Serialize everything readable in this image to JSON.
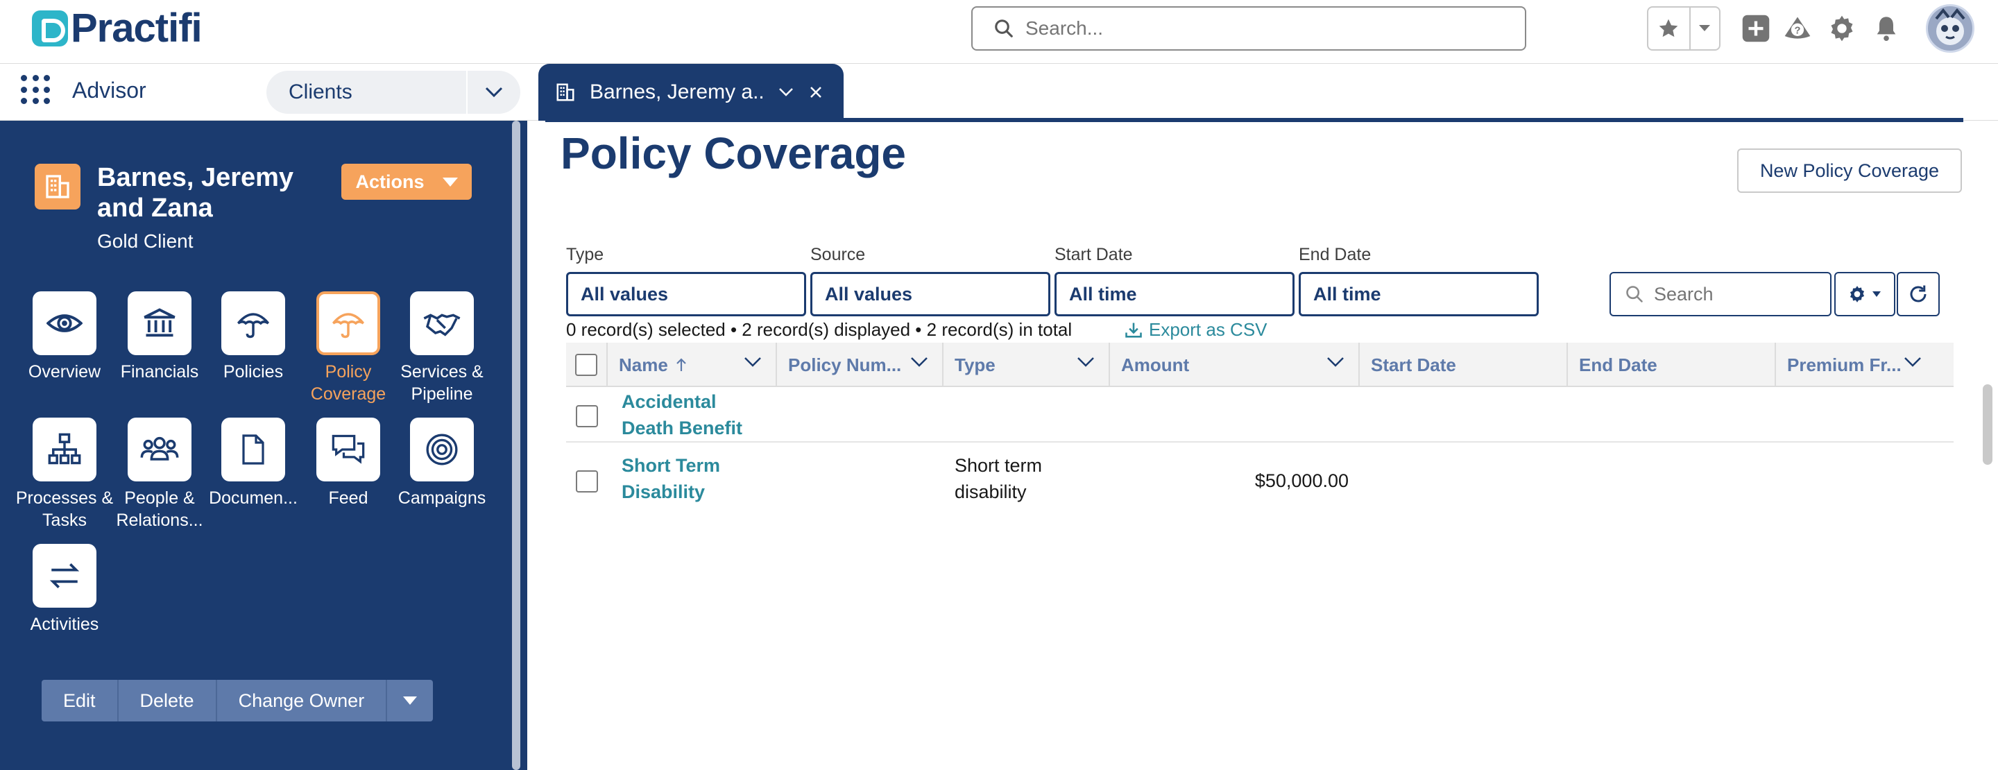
{
  "header": {
    "logo_text": "Practifi",
    "search_placeholder": "Search...",
    "icons": [
      "star-icon",
      "chevron-down-icon",
      "add-icon",
      "help-icon",
      "gear-icon",
      "bell-icon",
      "avatar"
    ]
  },
  "nav": {
    "app_name": "Advisor",
    "object_selector": "Clients",
    "record_tab_title": "Barnes, Jeremy a..."
  },
  "sidebar": {
    "account_name": "Barnes, Jeremy and Zana",
    "account_subtitle": "Gold Client",
    "actions_label": "Actions",
    "tiles": [
      {
        "label": "Overview",
        "icon": "eye-icon"
      },
      {
        "label": "Financials",
        "icon": "bank-icon"
      },
      {
        "label": "Policies",
        "icon": "umbrella-icon"
      },
      {
        "label": "Policy Coverage",
        "icon": "umbrella-icon",
        "active": true
      },
      {
        "label": "Services & Pipeline",
        "icon": "handshake-icon"
      },
      {
        "label": "Processes & Tasks",
        "icon": "org-chart-icon"
      },
      {
        "label": "People & Relations...",
        "icon": "people-icon"
      },
      {
        "label": "Documen...",
        "icon": "document-icon"
      },
      {
        "label": "Feed",
        "icon": "chat-icon"
      },
      {
        "label": "Campaigns",
        "icon": "target-icon"
      },
      {
        "label": "Activities",
        "icon": "swap-icon"
      }
    ],
    "buttons": {
      "edit": "Edit",
      "delete": "Delete",
      "change_owner": "Change Owner"
    }
  },
  "main": {
    "title": "Policy Coverage",
    "new_button": "New Policy Coverage",
    "filters": [
      {
        "label": "Type",
        "value": "All values"
      },
      {
        "label": "Source",
        "value": "All values"
      },
      {
        "label": "Start Date",
        "value": "All time"
      },
      {
        "label": "End Date",
        "value": "All time"
      }
    ],
    "table_search_placeholder": "Search",
    "record_info": "0 record(s) selected • 2 record(s) displayed • 2 record(s) in total",
    "export_label": "Export as CSV",
    "columns": [
      "Name",
      "Policy Num...",
      "Type",
      "Amount",
      "Start Date",
      "End Date",
      "Premium Fr..."
    ],
    "rows": [
      {
        "name": "Accidental Death Benefit",
        "policy_number": "",
        "type": "",
        "amount": "",
        "start_date": "",
        "end_date": "",
        "premium_frequency": ""
      },
      {
        "name": "Short Term Disability",
        "policy_number": "",
        "type": "Short term disability",
        "amount": "$50,000.00",
        "start_date": "",
        "end_date": "",
        "premium_frequency": ""
      }
    ]
  },
  "colors": {
    "brand_navy": "#1b3b6f",
    "accent_orange": "#f6a35c",
    "link_teal": "#2b8a9c",
    "header_text_blue": "#5e7aaa"
  }
}
